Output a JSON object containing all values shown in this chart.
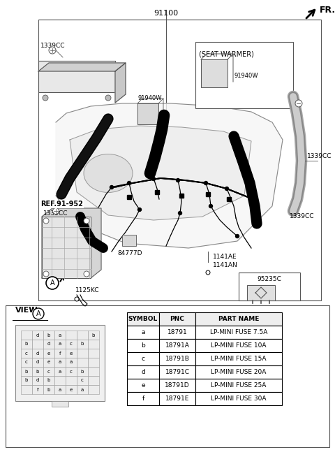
{
  "bg_color": "#ffffff",
  "fig_width": 4.8,
  "fig_height": 6.44,
  "dpi": 100,
  "part_number_main": "91100",
  "fr_label": "FR.",
  "seat_warmer_label": "(SEAT WARMER)",
  "ref_label": "REF.91-952",
  "labels_diagram": {
    "1339CC_tl": "1339CC",
    "1339CC_r": "1339CC",
    "1339CC_ml": "1339CC",
    "91940W_c": "91940W",
    "91940W_b": "91940W",
    "84777D": "84777D",
    "1125KC": "1125KC",
    "1141AE": "1141AE",
    "1141AN": "1141AN",
    "95235C": "95235C"
  },
  "table_headers": [
    "SYMBOL",
    "PNC",
    "PART NAME"
  ],
  "table_rows": [
    [
      "a",
      "18791",
      "LP-MINI FUSE 7.5A"
    ],
    [
      "b",
      "18791A",
      "LP-MINI FUSE 10A"
    ],
    [
      "c",
      "18791B",
      "LP-MINI FUSE 15A"
    ],
    [
      "d",
      "18791C",
      "LP-MINI FUSE 20A"
    ],
    [
      "e",
      "18791D",
      "LP-MINI FUSE 25A"
    ],
    [
      "f",
      "18791E",
      "LP-MINI FUSE 30A"
    ]
  ],
  "fuse_grid": [
    [
      "",
      "d",
      "b",
      "a",
      "",
      "",
      "b"
    ],
    [
      "b",
      "",
      "d",
      "a",
      "c",
      "b",
      ""
    ],
    [
      "c",
      "d",
      "e",
      "f",
      "e",
      "",
      ""
    ],
    [
      "c",
      "d",
      "e",
      "a",
      "a",
      "",
      ""
    ],
    [
      "b",
      "b",
      "c",
      "a",
      "c",
      "b",
      ""
    ],
    [
      "b",
      "d",
      "b",
      "",
      "",
      "c",
      ""
    ],
    [
      "",
      "f",
      "b",
      "a",
      "e",
      "a",
      ""
    ]
  ],
  "line_color": "#222222",
  "box_color": "#555555",
  "fill_light": "#f2f2f2"
}
